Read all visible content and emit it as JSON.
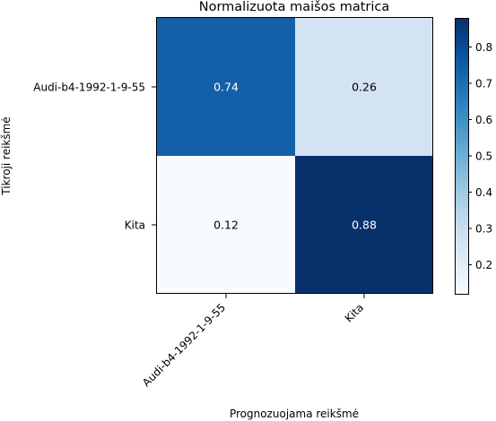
{
  "chart_data": {
    "type": "heatmap",
    "title": "Normalizuota maišos matrica",
    "xlabel": "Prognozuojama reikšmė",
    "ylabel": "Tikroji reikšmė",
    "x_categories": [
      "Audi-b4-1992-1-9-55",
      "Kita"
    ],
    "y_categories": [
      "Audi-b4-1992-1-9-55",
      "Kita"
    ],
    "values": [
      [
        0.74,
        0.26
      ],
      [
        0.12,
        0.88
      ]
    ],
    "cell_labels": [
      [
        "0.74",
        "0.26"
      ],
      [
        "0.12",
        "0.88"
      ]
    ],
    "colormap": "Blues",
    "colorbar": {
      "range": [
        0.12,
        0.88
      ],
      "ticks": [
        0.2,
        0.3,
        0.4,
        0.5,
        0.6,
        0.7,
        0.8
      ],
      "tick_labels": [
        "0.2",
        "0.3",
        "0.4",
        "0.5",
        "0.6",
        "0.7",
        "0.8"
      ]
    },
    "grid": false
  }
}
